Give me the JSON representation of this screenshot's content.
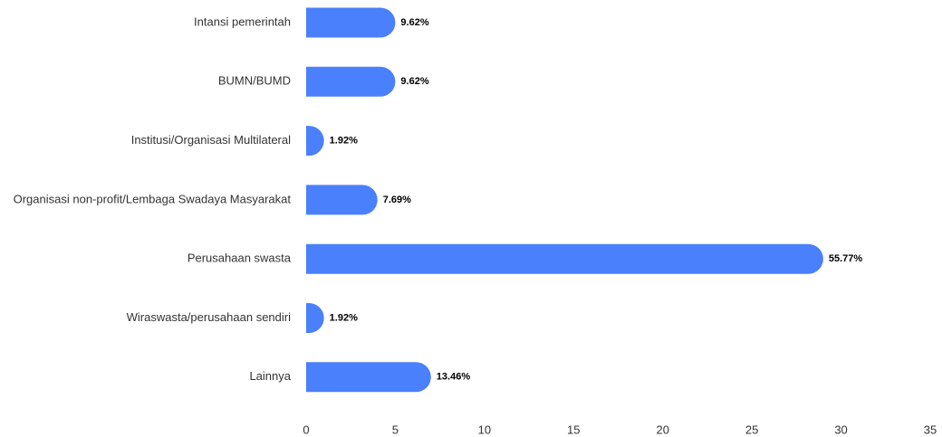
{
  "chart_data": {
    "type": "bar",
    "orientation": "horizontal",
    "categories": [
      "Intansi pemerintah",
      "BUMN/BUMD",
      "Institusi/Organisasi Multilateral",
      "Organisasi non-profit/Lembaga Swadaya Masyarakat",
      "Perusahaan swasta",
      "Wiraswasta/perusahaan sendiri",
      "Lainnya"
    ],
    "values": [
      5,
      5,
      1,
      4,
      29,
      1,
      7
    ],
    "data_labels": [
      "9.62%",
      "9.62%",
      "1.92%",
      "7.69%",
      "55.77%",
      "1.92%",
      "13.46%"
    ],
    "title": "",
    "xlabel": "",
    "ylabel": "",
    "xlim": [
      0,
      35
    ],
    "xticks": [
      "0",
      "5",
      "10",
      "15",
      "20",
      "25",
      "30",
      "35"
    ],
    "grid": false,
    "legend": "none",
    "bar_color": "#4a80fb"
  }
}
